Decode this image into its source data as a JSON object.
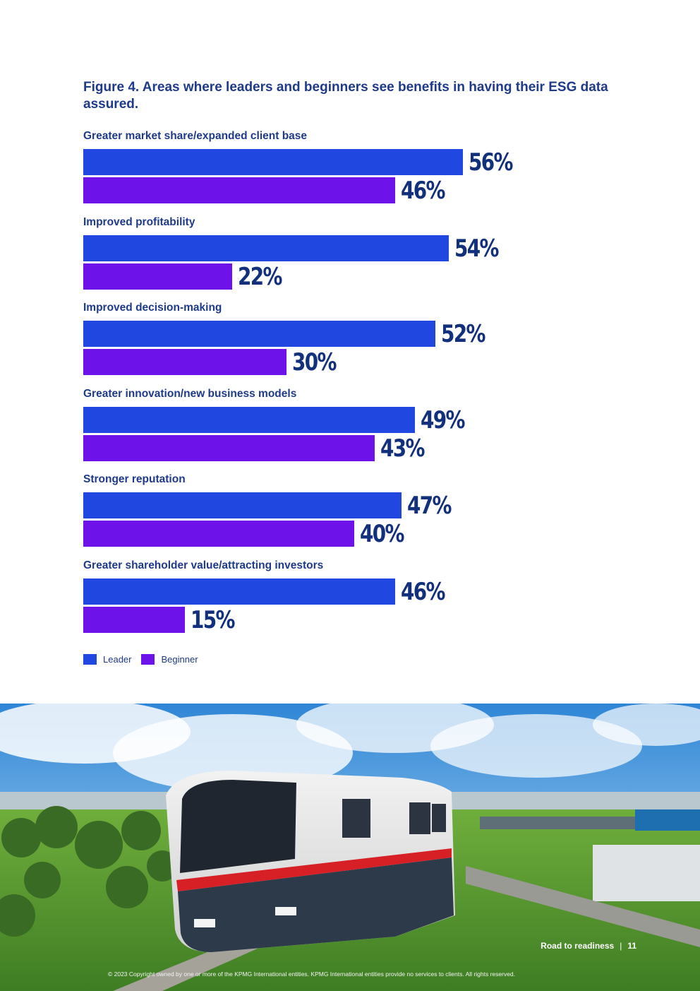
{
  "chart_data": {
    "type": "bar",
    "orientation": "horizontal",
    "title": "Figure 4. Areas where leaders and beginners see benefits in having their ESG data assured.",
    "categories": [
      "Greater market share/expanded client base",
      "Improved profitability",
      "Improved decision-making",
      "Greater innovation/new business models",
      "Stronger reputation",
      "Greater shareholder value/attracting investors"
    ],
    "series": [
      {
        "name": "Leader",
        "color": "#2048e0",
        "values": [
          56,
          54,
          52,
          49,
          47,
          46
        ]
      },
      {
        "name": "Beginner",
        "color": "#6d12e8",
        "values": [
          46,
          22,
          30,
          43,
          40,
          15
        ]
      }
    ],
    "value_suffix": "%",
    "xlim": [
      0,
      100
    ],
    "legend_position": "bottom-left",
    "grid": false
  },
  "legend": {
    "leader": "Leader",
    "beginner": "Beginner"
  },
  "footer": {
    "section": "Road to readiness",
    "separator": "|",
    "page": "11",
    "copyright": "© 2023 Copyright owned by one or more of the KPMG International entities. KPMG International entities provide no services to clients. All rights reserved."
  }
}
